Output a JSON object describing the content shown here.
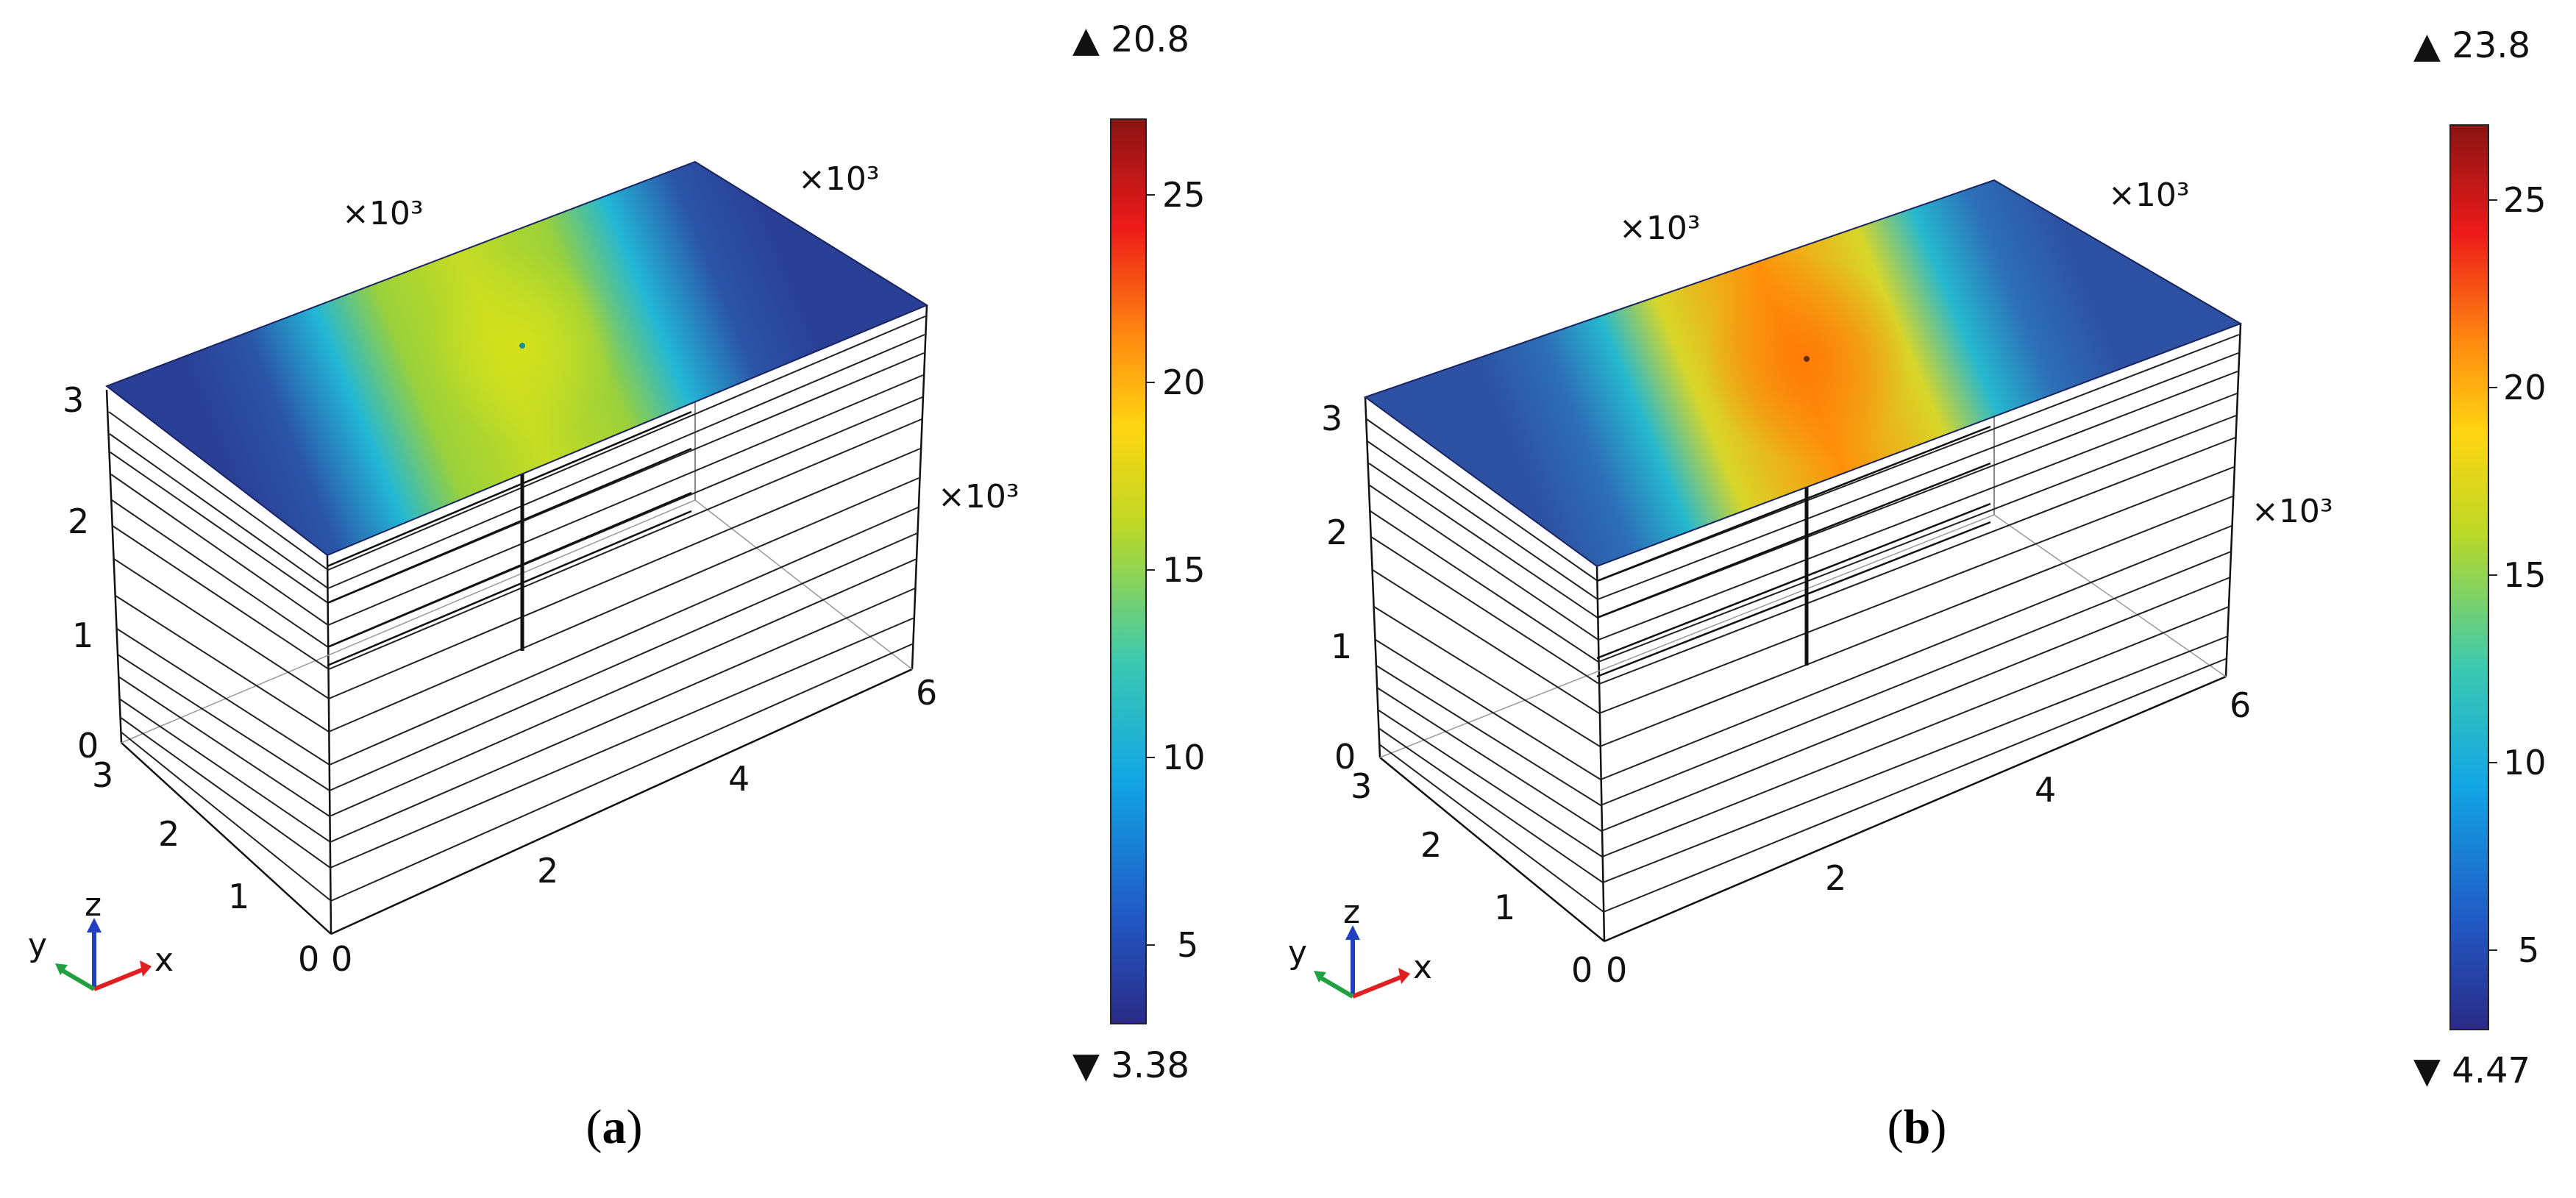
{
  "panels": [
    {
      "id": "a",
      "caption_open": "(",
      "caption_letter": "a",
      "caption_close": ")",
      "colorbar": {
        "max_marker": "▲ 20.8",
        "min_marker": "▼ 3.38",
        "ticks": [
          "25",
          "20",
          "15",
          "10",
          "5"
        ],
        "max_value": 20.8,
        "min_value": 3.38
      },
      "x_ticks": [
        "0",
        "2",
        "4",
        "6"
      ],
      "y_ticks": [
        "0",
        "1",
        "2",
        "3"
      ],
      "z_ticks": [
        "0",
        "1",
        "2",
        "3"
      ],
      "multiplier_label": "×10³",
      "triad": {
        "x": "x",
        "y": "y",
        "z": "z"
      },
      "surface": {
        "peak_color": "#c6dc22",
        "mid_color": "#22b7d6",
        "edge_color": "#2a3f96"
      }
    },
    {
      "id": "b",
      "caption_open": "(",
      "caption_letter": "b",
      "caption_close": ")",
      "colorbar": {
        "max_marker": "▲ 23.8",
        "min_marker": "▼ 4.47",
        "ticks": [
          "25",
          "20",
          "15",
          "10",
          "5"
        ],
        "max_value": 23.8,
        "min_value": 4.47
      },
      "x_ticks": [
        "0",
        "2",
        "4",
        "6"
      ],
      "y_ticks": [
        "0",
        "1",
        "2",
        "3"
      ],
      "z_ticks": [
        "0",
        "1",
        "2",
        "3"
      ],
      "multiplier_label": "×10³",
      "triad": {
        "x": "x",
        "y": "y",
        "z": "z"
      },
      "surface": {
        "peak_color": "#ff8f0a",
        "mid_color": "#25b8cf",
        "edge_color": "#2d52a3"
      }
    }
  ],
  "colormap_stops": [
    "#2b2a86",
    "#2159c4",
    "#12a6e4",
    "#3cc9b0",
    "#bcd825",
    "#ffd512",
    "#ff8a10",
    "#ee1a1a",
    "#8a1414"
  ]
}
